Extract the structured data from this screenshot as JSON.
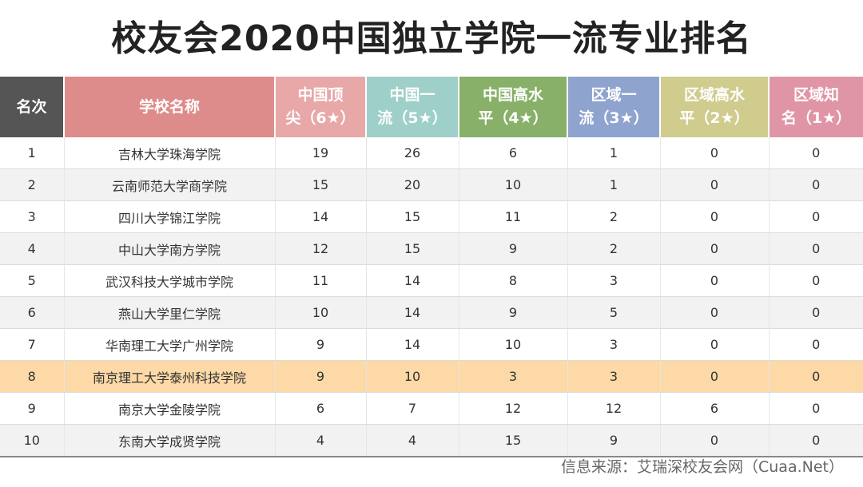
{
  "title": "校友会2020中国独立学院一流专业排名",
  "header": {
    "rank": "名次",
    "school": "学校名称",
    "c1": {
      "l1": "中国顶",
      "l2": "尖（6★）",
      "color": "#e8a8a8"
    },
    "c2": {
      "l1": "中国一",
      "l2": "流（5★）",
      "color": "#9fcfc9"
    },
    "c3": {
      "l1": "中国高水",
      "l2": "平（4★）",
      "color": "#88b068"
    },
    "c4": {
      "l1": "区域一",
      "l2": "流（3★）",
      "color": "#8fa3cf"
    },
    "c5": {
      "l1": "区域高水",
      "l2": "平（2★）",
      "color": "#cfcc8e"
    },
    "c6": {
      "l1": "区域知",
      "l2": "名（1★）",
      "color": "#e095a6"
    },
    "rank_color": "#555555",
    "school_color": "#de8b8b"
  },
  "rows": [
    {
      "rank": "1",
      "school": "吉林大学珠海学院",
      "c1": "19",
      "c2": "26",
      "c3": "6",
      "c4": "1",
      "c5": "0",
      "c6": "0"
    },
    {
      "rank": "2",
      "school": "云南师范大学商学院",
      "c1": "15",
      "c2": "20",
      "c3": "10",
      "c4": "1",
      "c5": "0",
      "c6": "0"
    },
    {
      "rank": "3",
      "school": "四川大学锦江学院",
      "c1": "14",
      "c2": "15",
      "c3": "11",
      "c4": "2",
      "c5": "0",
      "c6": "0"
    },
    {
      "rank": "4",
      "school": "中山大学南方学院",
      "c1": "12",
      "c2": "15",
      "c3": "9",
      "c4": "2",
      "c5": "0",
      "c6": "0"
    },
    {
      "rank": "5",
      "school": "武汉科技大学城市学院",
      "c1": "11",
      "c2": "14",
      "c3": "8",
      "c4": "3",
      "c5": "0",
      "c6": "0"
    },
    {
      "rank": "6",
      "school": "燕山大学里仁学院",
      "c1": "10",
      "c2": "14",
      "c3": "9",
      "c4": "5",
      "c5": "0",
      "c6": "0"
    },
    {
      "rank": "7",
      "school": "华南理工大学广州学院",
      "c1": "9",
      "c2": "14",
      "c3": "10",
      "c4": "3",
      "c5": "0",
      "c6": "0"
    },
    {
      "rank": "8",
      "school": "南京理工大学泰州科技学院",
      "c1": "9",
      "c2": "10",
      "c3": "3",
      "c4": "3",
      "c5": "0",
      "c6": "0"
    },
    {
      "rank": "9",
      "school": "南京大学金陵学院",
      "c1": "6",
      "c2": "7",
      "c3": "12",
      "c4": "12",
      "c5": "6",
      "c6": "0"
    },
    {
      "rank": "10",
      "school": "东南大学成贤学院",
      "c1": "4",
      "c2": "4",
      "c3": "15",
      "c4": "9",
      "c5": "0",
      "c6": "0"
    }
  ],
  "highlight_color": "#fcd9a6",
  "source": "信息来源：艾瑞深校友会网（Cuaa.Net）"
}
